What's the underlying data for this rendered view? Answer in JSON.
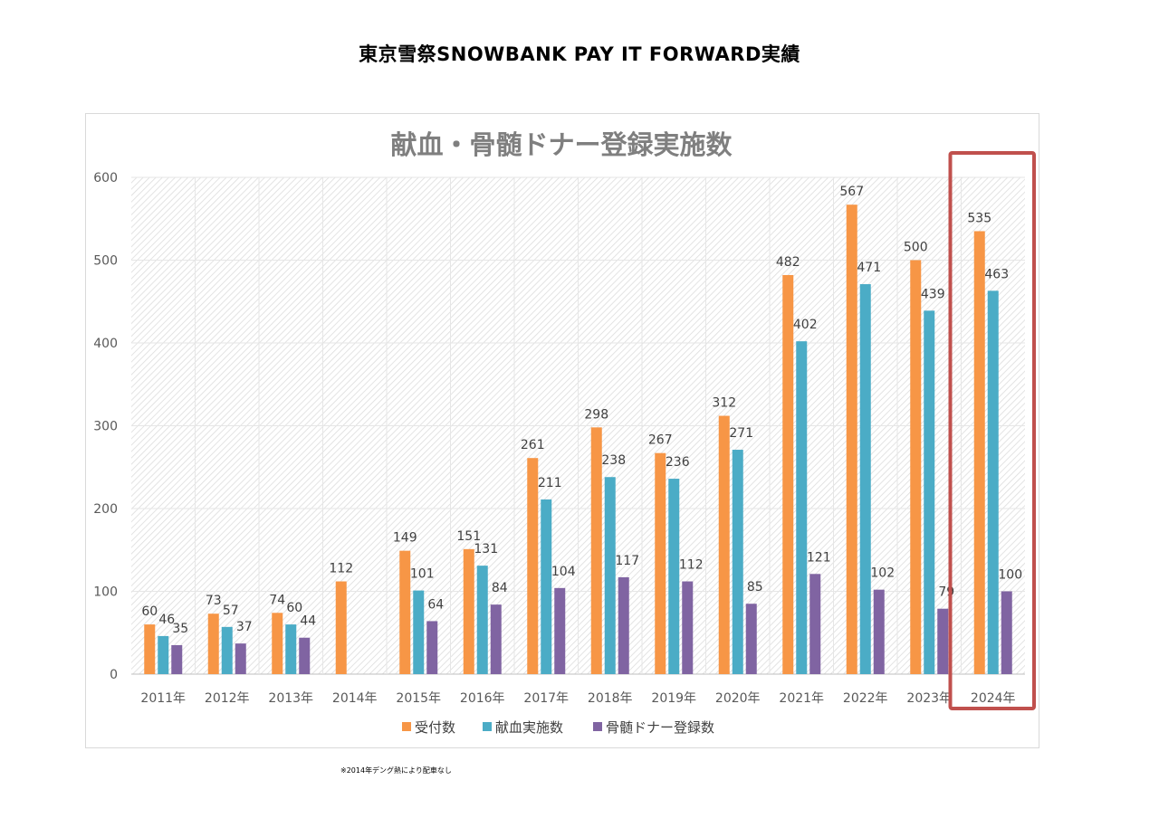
{
  "page_title": "東京雪祭SNOWBANK PAY IT FORWARD実績",
  "footnote": "※2014年デング熱により配車なし",
  "chart_data": {
    "type": "bar",
    "title": "献血・骨髄ドナー登録実施数",
    "xlabel": "",
    "ylabel": "",
    "ylim": [
      0,
      600
    ],
    "yticks": [
      0,
      100,
      200,
      300,
      400,
      500,
      600
    ],
    "grid": true,
    "legend_position": "bottom",
    "highlight_category": "2024年",
    "categories": [
      "2011年",
      "2012年",
      "2013年",
      "2014年",
      "2015年",
      "2016年",
      "2017年",
      "2018年",
      "2019年",
      "2020年",
      "2021年",
      "2022年",
      "2023年",
      "2024年"
    ],
    "series": [
      {
        "name": "受付数",
        "color": "#f79646",
        "values": [
          60,
          73,
          74,
          112,
          149,
          151,
          261,
          298,
          267,
          312,
          482,
          567,
          500,
          535
        ]
      },
      {
        "name": "献血実施数",
        "color": "#4bacc6",
        "values": [
          46,
          57,
          60,
          null,
          101,
          131,
          211,
          238,
          236,
          271,
          402,
          471,
          439,
          463
        ]
      },
      {
        "name": "骨髄ドナー登録数",
        "color": "#8064a2",
        "values": [
          35,
          37,
          44,
          null,
          64,
          84,
          104,
          117,
          112,
          85,
          121,
          102,
          79,
          100
        ]
      }
    ]
  }
}
